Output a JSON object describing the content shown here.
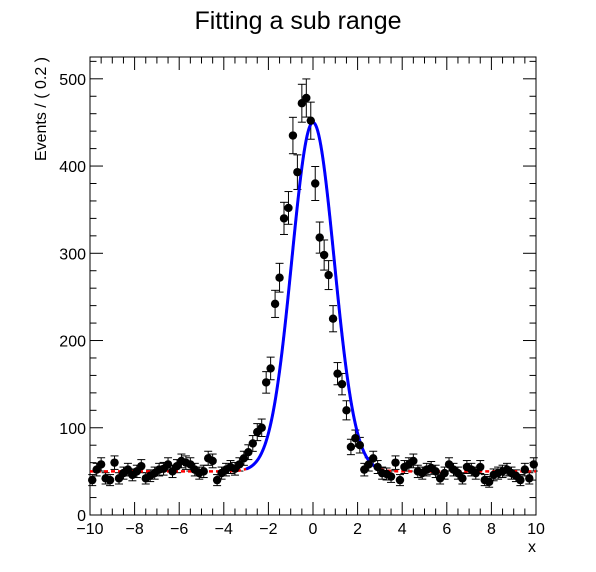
{
  "chart_data": {
    "type": "scatter",
    "title": "Fitting a sub range",
    "xlabel": "x",
    "ylabel": "Events / ( 0.2 )",
    "xlim": [
      -10,
      10
    ],
    "ylim": [
      0,
      525
    ],
    "x_ticks": [
      -10,
      -8,
      -6,
      -4,
      -2,
      0,
      2,
      4,
      6,
      8,
      10
    ],
    "y_ticks": [
      0,
      100,
      200,
      300,
      400,
      500
    ],
    "grid": false,
    "legend": "none",
    "series": [
      {
        "style": "points-with-errorbars",
        "color": "#000000",
        "x": [
          -9.9,
          -9.7,
          -9.5,
          -9.3,
          -9.1,
          -8.9,
          -8.7,
          -8.5,
          -8.3,
          -8.1,
          -7.9,
          -7.7,
          -7.5,
          -7.3,
          -7.1,
          -6.9,
          -6.7,
          -6.5,
          -6.3,
          -6.1,
          -5.9,
          -5.7,
          -5.5,
          -5.3,
          -5.1,
          -4.9,
          -4.7,
          -4.5,
          -4.3,
          -4.1,
          -3.9,
          -3.7,
          -3.5,
          -3.3,
          -3.1,
          -2.9,
          -2.7,
          -2.5,
          -2.3,
          -2.1,
          -1.9,
          -1.7,
          -1.5,
          -1.3,
          -1.1,
          -0.9,
          -0.7,
          -0.5,
          -0.3,
          -0.1,
          0.1,
          0.3,
          0.5,
          0.7,
          0.9,
          1.1,
          1.3,
          1.5,
          1.7,
          1.9,
          2.1,
          2.3,
          2.5,
          2.7,
          2.9,
          3.1,
          3.3,
          3.5,
          3.7,
          3.9,
          4.1,
          4.3,
          4.5,
          4.7,
          4.9,
          5.1,
          5.3,
          5.5,
          5.7,
          5.9,
          6.1,
          6.3,
          6.5,
          6.7,
          6.9,
          7.1,
          7.3,
          7.5,
          7.7,
          7.9,
          8.1,
          8.3,
          8.5,
          8.7,
          8.9,
          9.1,
          9.3,
          9.5,
          9.7,
          9.9
        ],
        "y": [
          40,
          52,
          58,
          42,
          40,
          60,
          42,
          48,
          52,
          46,
          50,
          56,
          42,
          45,
          48,
          52,
          53,
          58,
          50,
          56,
          62,
          60,
          58,
          52,
          48,
          50,
          65,
          62,
          40,
          48,
          52,
          55,
          53,
          58,
          65,
          72,
          82,
          95,
          100,
          152,
          168,
          242,
          272,
          340,
          352,
          435,
          393,
          472,
          478,
          452,
          380,
          318,
          298,
          275,
          225,
          162,
          150,
          120,
          78,
          88,
          80,
          52,
          58,
          65,
          55,
          48,
          47,
          44,
          60,
          40,
          55,
          58,
          62,
          50,
          48,
          52,
          54,
          50,
          42,
          48,
          58,
          52,
          48,
          42,
          55,
          52,
          48,
          55,
          40,
          38,
          46,
          48,
          50,
          52,
          48,
          45,
          40,
          52,
          42,
          58
        ]
      },
      {
        "style": "fit-curve-full-range",
        "color": "#ff0000",
        "dashed": true,
        "shape": {
          "background": 50,
          "peak_amplitude": 400,
          "mean": 0,
          "sigma": 0.95
        },
        "xlim": [
          -10,
          10
        ]
      },
      {
        "style": "fit-curve-sub-range",
        "color": "#0000ff",
        "dashed": false,
        "shape": {
          "background": 50,
          "peak_amplitude": 400,
          "mean": 0,
          "sigma": 0.95
        },
        "xlim": [
          -3,
          3
        ]
      }
    ]
  }
}
